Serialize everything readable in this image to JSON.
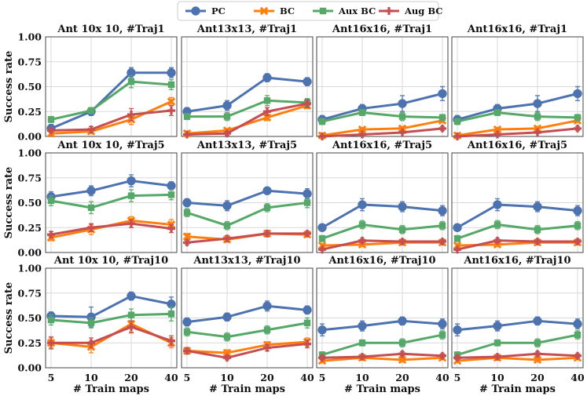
{
  "chart_data": {
    "type": "line",
    "x": [
      5,
      10,
      20,
      40
    ],
    "x_tick_labels": [
      "5",
      "10",
      "20",
      "40"
    ],
    "y_tick_labels": [
      "0.00",
      "0.25",
      "0.50",
      "0.75",
      "1.00"
    ],
    "ylim": [
      0,
      1
    ],
    "xlabel": "# Train maps",
    "ylabel": "Success rate",
    "legend_position": "top-center",
    "series_styles": [
      {
        "name": "PC",
        "color": "#4c72b0",
        "marker": "circle"
      },
      {
        "name": "BC",
        "color": "#ff7f0e",
        "marker": "x"
      },
      {
        "name": "Aux BC",
        "color": "#55a868",
        "marker": "square"
      },
      {
        "name": "Aug BC",
        "color": "#c44e52",
        "marker": "plus"
      }
    ],
    "panels": [
      {
        "title": "Ant 10x 10, #Traj1",
        "series": [
          {
            "name": "PC",
            "values": [
              0.08,
              0.25,
              0.64,
              0.64
            ],
            "errors": [
              0.04,
              0.04,
              0.05,
              0.05
            ]
          },
          {
            "name": "BC",
            "values": [
              0.03,
              0.05,
              0.17,
              0.35
            ],
            "errors": [
              0.02,
              0.02,
              0.05,
              0.04
            ]
          },
          {
            "name": "Aux BC",
            "values": [
              0.17,
              0.26,
              0.55,
              0.52
            ],
            "errors": [
              0.03,
              0.03,
              0.06,
              0.05
            ]
          },
          {
            "name": "Aug BC",
            "values": [
              0.06,
              0.07,
              0.22,
              0.26
            ],
            "errors": [
              0.02,
              0.03,
              0.06,
              0.05
            ]
          }
        ]
      },
      {
        "title": "Ant13x13, #Traj1",
        "series": [
          {
            "name": "PC",
            "values": [
              0.25,
              0.31,
              0.59,
              0.55
            ],
            "errors": [
              0.04,
              0.05,
              0.04,
              0.04
            ]
          },
          {
            "name": "BC",
            "values": [
              0.03,
              0.06,
              0.19,
              0.31
            ],
            "errors": [
              0.02,
              0.02,
              0.03,
              0.03
            ]
          },
          {
            "name": "Aux BC",
            "values": [
              0.2,
              0.2,
              0.36,
              0.34
            ],
            "errors": [
              0.03,
              0.04,
              0.05,
              0.04
            ]
          },
          {
            "name": "Aug BC",
            "values": [
              0.02,
              0.03,
              0.25,
              0.33
            ],
            "errors": [
              0.01,
              0.02,
              0.04,
              0.04
            ]
          }
        ]
      },
      {
        "title": "Ant16x16, #Traj1",
        "series": [
          {
            "name": "PC",
            "values": [
              0.17,
              0.28,
              0.33,
              0.43
            ],
            "errors": [
              0.04,
              0.04,
              0.08,
              0.07
            ]
          },
          {
            "name": "BC",
            "values": [
              0.01,
              0.07,
              0.08,
              0.16
            ],
            "errors": [
              0.01,
              0.02,
              0.02,
              0.02
            ]
          },
          {
            "name": "Aux BC",
            "values": [
              0.15,
              0.24,
              0.2,
              0.19
            ],
            "errors": [
              0.03,
              0.03,
              0.04,
              0.03
            ]
          },
          {
            "name": "Aug BC",
            "values": [
              0.0,
              0.02,
              0.04,
              0.08
            ],
            "errors": [
              0.01,
              0.01,
              0.01,
              0.02
            ]
          }
        ]
      },
      {
        "title": "Ant16x16, #Traj1",
        "series": [
          {
            "name": "PC",
            "values": [
              0.17,
              0.28,
              0.33,
              0.43
            ],
            "errors": [
              0.04,
              0.04,
              0.08,
              0.07
            ]
          },
          {
            "name": "BC",
            "values": [
              0.01,
              0.07,
              0.08,
              0.16
            ],
            "errors": [
              0.01,
              0.02,
              0.02,
              0.02
            ]
          },
          {
            "name": "Aux BC",
            "values": [
              0.15,
              0.24,
              0.2,
              0.19
            ],
            "errors": [
              0.03,
              0.03,
              0.04,
              0.03
            ]
          },
          {
            "name": "Aug BC",
            "values": [
              0.0,
              0.02,
              0.04,
              0.08
            ],
            "errors": [
              0.01,
              0.01,
              0.01,
              0.02
            ]
          }
        ]
      },
      {
        "title": "Ant 10x 10, #Traj5",
        "series": [
          {
            "name": "PC",
            "values": [
              0.56,
              0.62,
              0.72,
              0.67
            ],
            "errors": [
              0.05,
              0.05,
              0.06,
              0.04
            ]
          },
          {
            "name": "BC",
            "values": [
              0.15,
              0.23,
              0.32,
              0.28
            ],
            "errors": [
              0.03,
              0.05,
              0.04,
              0.05
            ]
          },
          {
            "name": "Aux BC",
            "values": [
              0.52,
              0.45,
              0.57,
              0.58
            ],
            "errors": [
              0.05,
              0.06,
              0.06,
              0.05
            ]
          },
          {
            "name": "Aug BC",
            "values": [
              0.18,
              0.25,
              0.29,
              0.24
            ],
            "errors": [
              0.03,
              0.04,
              0.04,
              0.04
            ]
          }
        ]
      },
      {
        "title": "Ant13x13, #Traj5",
        "series": [
          {
            "name": "PC",
            "values": [
              0.5,
              0.47,
              0.62,
              0.59
            ],
            "errors": [
              0.04,
              0.05,
              0.03,
              0.05
            ]
          },
          {
            "name": "BC",
            "values": [
              0.16,
              0.13,
              0.19,
              0.18
            ],
            "errors": [
              0.03,
              0.02,
              0.02,
              0.02
            ]
          },
          {
            "name": "Aux BC",
            "values": [
              0.4,
              0.27,
              0.45,
              0.5
            ],
            "errors": [
              0.04,
              0.04,
              0.04,
              0.05
            ]
          },
          {
            "name": "Aug BC",
            "values": [
              0.1,
              0.14,
              0.19,
              0.19
            ],
            "errors": [
              0.02,
              0.03,
              0.03,
              0.02
            ]
          }
        ]
      },
      {
        "title": "Ant16x16, #Traj5",
        "series": [
          {
            "name": "PC",
            "values": [
              0.25,
              0.48,
              0.46,
              0.42
            ],
            "errors": [
              0.02,
              0.06,
              0.05,
              0.05
            ]
          },
          {
            "name": "BC",
            "values": [
              0.07,
              0.08,
              0.1,
              0.1
            ],
            "errors": [
              0.02,
              0.02,
              0.02,
              0.02
            ]
          },
          {
            "name": "Aux BC",
            "values": [
              0.14,
              0.28,
              0.23,
              0.27
            ],
            "errors": [
              0.03,
              0.04,
              0.04,
              0.04
            ]
          },
          {
            "name": "Aug BC",
            "values": [
              0.03,
              0.12,
              0.11,
              0.11
            ],
            "errors": [
              0.01,
              0.02,
              0.02,
              0.02
            ]
          }
        ]
      },
      {
        "title": "Ant16x16, #Traj5",
        "series": [
          {
            "name": "PC",
            "values": [
              0.25,
              0.48,
              0.46,
              0.42
            ],
            "errors": [
              0.02,
              0.06,
              0.05,
              0.05
            ]
          },
          {
            "name": "BC",
            "values": [
              0.07,
              0.08,
              0.1,
              0.1
            ],
            "errors": [
              0.02,
              0.02,
              0.02,
              0.02
            ]
          },
          {
            "name": "Aux BC",
            "values": [
              0.14,
              0.28,
              0.23,
              0.27
            ],
            "errors": [
              0.03,
              0.04,
              0.04,
              0.04
            ]
          },
          {
            "name": "Aug BC",
            "values": [
              0.03,
              0.12,
              0.11,
              0.11
            ],
            "errors": [
              0.01,
              0.02,
              0.02,
              0.02
            ]
          }
        ]
      },
      {
        "title": "Ant 10x 10, #Traj10",
        "series": [
          {
            "name": "PC",
            "values": [
              0.52,
              0.51,
              0.72,
              0.64
            ],
            "errors": [
              0.04,
              0.1,
              0.04,
              0.07
            ]
          },
          {
            "name": "BC",
            "values": [
              0.25,
              0.21,
              0.44,
              0.25
            ],
            "errors": [
              0.05,
              0.06,
              0.08,
              0.05
            ]
          },
          {
            "name": "Aux BC",
            "values": [
              0.48,
              0.45,
              0.53,
              0.54
            ],
            "errors": [
              0.05,
              0.05,
              0.06,
              0.07
            ]
          },
          {
            "name": "Aug BC",
            "values": [
              0.25,
              0.25,
              0.41,
              0.27
            ],
            "errors": [
              0.06,
              0.05,
              0.06,
              0.05
            ]
          }
        ]
      },
      {
        "title": "Ant13x13, #Traj10",
        "series": [
          {
            "name": "PC",
            "values": [
              0.46,
              0.51,
              0.62,
              0.58
            ],
            "errors": [
              0.04,
              0.04,
              0.05,
              0.04
            ]
          },
          {
            "name": "BC",
            "values": [
              0.17,
              0.15,
              0.23,
              0.26
            ],
            "errors": [
              0.03,
              0.03,
              0.03,
              0.04
            ]
          },
          {
            "name": "Aux BC",
            "values": [
              0.36,
              0.31,
              0.38,
              0.45
            ],
            "errors": [
              0.04,
              0.04,
              0.04,
              0.05
            ]
          },
          {
            "name": "Aug BC",
            "values": [
              0.17,
              0.1,
              0.2,
              0.24
            ],
            "errors": [
              0.03,
              0.02,
              0.03,
              0.04
            ]
          }
        ]
      },
      {
        "title": "Ant16x16, #Traj10",
        "series": [
          {
            "name": "PC",
            "values": [
              0.38,
              0.42,
              0.47,
              0.44
            ],
            "errors": [
              0.06,
              0.05,
              0.04,
              0.05
            ]
          },
          {
            "name": "BC",
            "values": [
              0.07,
              0.1,
              0.08,
              0.1
            ],
            "errors": [
              0.02,
              0.02,
              0.02,
              0.02
            ]
          },
          {
            "name": "Aux BC",
            "values": [
              0.13,
              0.25,
              0.25,
              0.33
            ],
            "errors": [
              0.03,
              0.03,
              0.04,
              0.04
            ]
          },
          {
            "name": "Aug BC",
            "values": [
              0.1,
              0.11,
              0.14,
              0.12
            ],
            "errors": [
              0.02,
              0.02,
              0.02,
              0.02
            ]
          }
        ]
      },
      {
        "title": "Ant16x16, #Traj10",
        "series": [
          {
            "name": "PC",
            "values": [
              0.38,
              0.42,
              0.47,
              0.44
            ],
            "errors": [
              0.06,
              0.05,
              0.04,
              0.05
            ]
          },
          {
            "name": "BC",
            "values": [
              0.07,
              0.1,
              0.08,
              0.1
            ],
            "errors": [
              0.02,
              0.02,
              0.02,
              0.02
            ]
          },
          {
            "name": "Aux BC",
            "values": [
              0.13,
              0.25,
              0.25,
              0.33
            ],
            "errors": [
              0.03,
              0.03,
              0.04,
              0.04
            ]
          },
          {
            "name": "Aug BC",
            "values": [
              0.1,
              0.11,
              0.14,
              0.12
            ],
            "errors": [
              0.02,
              0.02,
              0.02,
              0.02
            ]
          }
        ]
      }
    ]
  }
}
